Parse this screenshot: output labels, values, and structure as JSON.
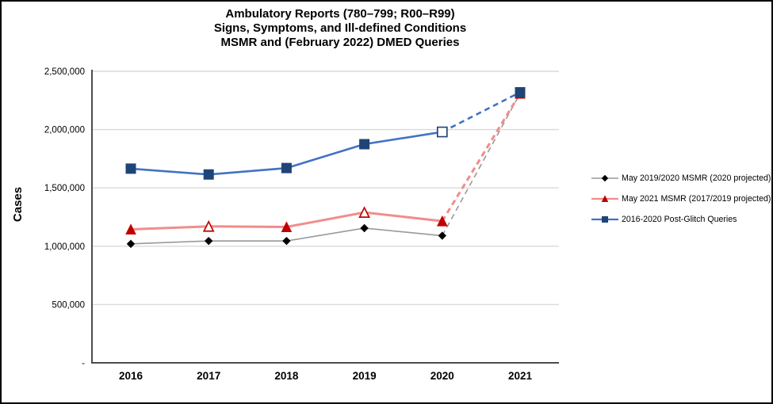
{
  "page": {
    "background_color": "#FFFFFF",
    "border_color": "#000000"
  },
  "chart_data": {
    "type": "line",
    "title_lines": [
      "Ambulatory Reports (780–799; R00–R99)",
      "Signs, Symptoms, and Ill-defined Conditions",
      "MSMR and (February 2022) DMED Queries"
    ],
    "ylabel": "Cases",
    "xlabel": "",
    "categories": [
      "2016",
      "2017",
      "2018",
      "2019",
      "2020",
      "2021"
    ],
    "ylim": [
      0,
      2500000
    ],
    "y_ticks": [
      {
        "label": "2,500,000",
        "value": 2500000
      },
      {
        "label": "2,000,000",
        "value": 2000000
      },
      {
        "label": "1,500,000",
        "value": 1500000
      },
      {
        "label": "1,000,000",
        "value": 1000000
      },
      {
        "label": "500,000",
        "value": 500000
      },
      {
        "label": "-",
        "value": 0
      }
    ],
    "grid": "horizontal",
    "legend_position": "right",
    "series": [
      {
        "name": "May 2019/2020 MSMR (2020 projected)",
        "values": [
          1020000,
          1045000,
          1045000,
          1155000,
          1090000,
          2310000
        ],
        "line_color": "#999999",
        "line_width": 1.6,
        "marker": "diamond",
        "marker_color": "#000000",
        "marker_size": 9,
        "open_indices": [],
        "dashed_from_index": 4
      },
      {
        "name": "May 2021 MSMR (2017/2019 projected)",
        "values": [
          1145000,
          1170000,
          1165000,
          1290000,
          1215000,
          2310000
        ],
        "line_color": "#F28C8C",
        "line_width": 3,
        "marker": "triangle",
        "marker_color": "#C00000",
        "marker_size": 12,
        "open_indices": [
          1,
          3
        ],
        "dashed_from_index": 4
      },
      {
        "name": "2016-2020 Post-Glitch Queries",
        "values": [
          1665000,
          1615000,
          1670000,
          1875000,
          1980000,
          2320000
        ],
        "line_color": "#4472C4",
        "line_width": 2.6,
        "marker": "square",
        "marker_color": "#1F4477",
        "marker_size": 12,
        "open_indices": [
          4
        ],
        "dashed_from_index": 4
      }
    ],
    "colors": {
      "gridline": "#D9D9D9",
      "axis": "#4D4D4D",
      "tick_text": "#000000"
    }
  }
}
